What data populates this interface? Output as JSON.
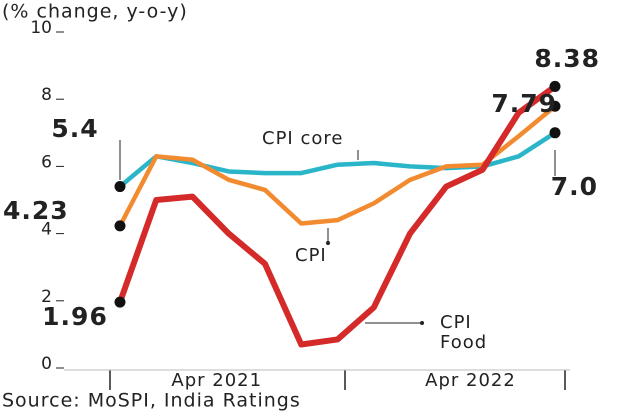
{
  "chart_data": {
    "type": "line",
    "title": "(% change, y-o-y)",
    "source": "Source: MoSPI, India Ratings",
    "categories": [
      null,
      null,
      null,
      "Apr 2021",
      null,
      null,
      null,
      null,
      null,
      null,
      "Apr 2022",
      null,
      null
    ],
    "ylim": [
      0,
      10
    ],
    "yticks": [
      0,
      2,
      4,
      6,
      8,
      10
    ],
    "series": [
      {
        "name": "CPI core",
        "color": "#2bb5c9",
        "values": [
          5.4,
          6.3,
          6.1,
          5.85,
          5.8,
          5.8,
          6.05,
          6.1,
          6.0,
          5.95,
          6.0,
          6.3,
          7.0
        ],
        "value_labels": [
          "5.4",
          null,
          null,
          null,
          null,
          null,
          null,
          null,
          null,
          null,
          null,
          null,
          "7.0"
        ]
      },
      {
        "name": "CPI",
        "color": "#f28b30",
        "values": [
          4.23,
          6.3,
          6.2,
          5.6,
          5.3,
          4.3,
          4.4,
          4.9,
          5.6,
          6.0,
          6.05,
          6.9,
          7.79
        ],
        "value_labels": [
          "4.23",
          null,
          null,
          null,
          null,
          null,
          null,
          null,
          null,
          null,
          null,
          null,
          "7.79"
        ]
      },
      {
        "name": "CPI Food",
        "color": "#d42a2a",
        "values": [
          1.96,
          5.0,
          5.1,
          4.0,
          3.1,
          0.7,
          0.85,
          1.8,
          4.0,
          5.4,
          5.9,
          7.6,
          8.38
        ],
        "value_labels": [
          "1.96",
          null,
          null,
          null,
          null,
          null,
          null,
          null,
          null,
          null,
          null,
          null,
          "8.38"
        ]
      }
    ]
  }
}
